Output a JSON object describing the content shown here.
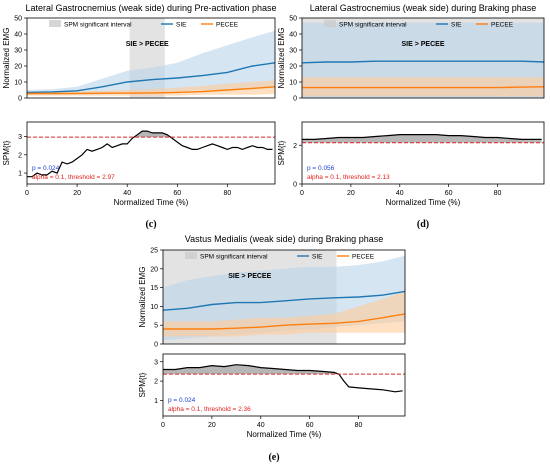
{
  "colors": {
    "sie": "#1f77b4",
    "pecee": "#ff7f0e",
    "sie_band": "#b9d3ea",
    "pecee_band": "#ffcc99",
    "spm_region": "#cccccc",
    "threshold": "#d62728",
    "p_text": "#1f3fd6",
    "alpha_text": "#e0201a",
    "spm_fill": "#9e9e9e"
  },
  "chart_data": [
    {
      "id": "c",
      "type": "line",
      "title": "Lateral Gastrocnemius (weak side) during Pre-activation phase",
      "panel_label": "(c)",
      "ylabel": "Normalized EMG",
      "ylim": [
        0,
        50
      ],
      "yticks": [
        0,
        10,
        20,
        30,
        40,
        50
      ],
      "legend": {
        "entries": [
          "SPM significant interval",
          "SIE",
          "PECEE"
        ],
        "placement": "top"
      },
      "significance_label": "SIE > PECEE",
      "spm_intervals": [
        [
          41,
          55
        ]
      ],
      "series": [
        {
          "name": "SIE",
          "x": [
            0,
            10,
            20,
            30,
            40,
            50,
            60,
            70,
            80,
            90,
            99
          ],
          "mean": [
            3.5,
            3.8,
            4.5,
            7,
            10,
            11.5,
            12.5,
            14,
            16,
            20,
            22
          ],
          "upper": [
            5,
            5.5,
            7,
            12,
            17,
            19,
            22,
            28,
            33,
            38,
            42
          ],
          "lower": [
            2,
            2,
            2,
            2,
            3,
            4,
            4,
            5,
            5,
            6,
            6
          ]
        },
        {
          "name": "PECEE",
          "x": [
            0,
            10,
            20,
            30,
            40,
            50,
            60,
            70,
            80,
            90,
            99
          ],
          "mean": [
            2.8,
            2.8,
            2.9,
            3,
            3,
            3.2,
            3.5,
            4,
            5,
            6,
            7
          ],
          "upper": [
            4,
            4,
            4,
            4.5,
            5,
            5.5,
            6.5,
            7.5,
            9,
            10,
            11
          ],
          "lower": [
            1.5,
            1.5,
            1.5,
            1.5,
            1.5,
            1.5,
            1.5,
            2,
            2,
            2,
            2.5
          ]
        }
      ],
      "spm": {
        "ylabel": "SPM{t}",
        "xlabel": "Normalized Time (%)",
        "ylim": [
          0.4,
          3.8
        ],
        "yticks": [
          1,
          2,
          3
        ],
        "xlim": [
          0,
          99
        ],
        "xticks": [
          0,
          20,
          40,
          60,
          80
        ],
        "threshold": 2.97,
        "x": [
          0,
          2,
          4,
          6,
          8,
          10,
          12,
          14,
          16,
          18,
          20,
          22,
          24,
          26,
          28,
          30,
          32,
          34,
          36,
          38,
          40,
          42,
          44,
          46,
          48,
          50,
          52,
          54,
          56,
          58,
          60,
          62,
          64,
          66,
          68,
          70,
          72,
          74,
          76,
          78,
          80,
          82,
          84,
          86,
          88,
          90,
          92,
          94,
          96,
          98
        ],
        "y": [
          0.8,
          0.8,
          1.0,
          0.9,
          0.9,
          1.1,
          1.0,
          1.6,
          1.5,
          1.6,
          1.8,
          2.0,
          2.3,
          2.2,
          2.3,
          2.4,
          2.6,
          2.4,
          2.5,
          2.6,
          2.6,
          2.9,
          3.1,
          3.3,
          3.3,
          3.2,
          3.2,
          3.2,
          3.1,
          2.9,
          2.7,
          2.5,
          2.4,
          2.3,
          2.3,
          2.4,
          2.5,
          2.6,
          2.5,
          2.4,
          2.3,
          2.4,
          2.4,
          2.3,
          2.4,
          2.5,
          2.4,
          2.4,
          2.3,
          2.3
        ],
        "p_text": "p = 0.024",
        "alpha_text": "alpha = 0.1, threshold = 2.97"
      }
    },
    {
      "id": "d",
      "type": "line",
      "title": "Lateral Gastrocnemius (weak side) during Braking phase",
      "panel_label": "(d)",
      "ylabel": "Normalized EMG",
      "ylim": [
        0,
        50
      ],
      "yticks": [
        0,
        10,
        20,
        30,
        40,
        50
      ],
      "legend": {
        "entries": [
          "SPM significant interval",
          "SIE",
          "PECEE"
        ],
        "placement": "top"
      },
      "significance_label": "SIE > PECEE",
      "spm_intervals": [
        [
          0,
          99
        ]
      ],
      "series": [
        {
          "name": "SIE",
          "x": [
            0,
            10,
            20,
            30,
            40,
            50,
            60,
            70,
            80,
            90,
            99
          ],
          "mean": [
            22,
            22.5,
            22.5,
            23,
            23,
            23,
            23,
            23,
            23,
            23,
            22.5
          ],
          "upper": [
            47,
            47,
            47,
            47,
            47,
            47,
            47,
            47,
            47,
            47,
            47
          ],
          "lower": [
            0,
            0,
            0,
            0,
            0,
            0,
            0,
            0,
            0,
            0,
            0
          ]
        },
        {
          "name": "PECEE",
          "x": [
            0,
            10,
            20,
            30,
            40,
            50,
            60,
            70,
            80,
            90,
            99
          ],
          "mean": [
            6.5,
            6.5,
            6.5,
            6.5,
            6.5,
            6.5,
            6.5,
            6.5,
            6.5,
            6.8,
            7
          ],
          "upper": [
            13,
            13,
            13,
            13,
            13,
            13,
            13,
            13,
            13,
            13,
            13
          ],
          "lower": [
            1,
            1,
            1,
            1,
            1,
            1,
            1,
            1,
            1,
            1,
            1
          ]
        }
      ],
      "spm": {
        "ylabel": "SPM{t}",
        "xlabel": "Normalized Time (%)",
        "ylim": [
          0,
          3.2
        ],
        "yticks": [
          0,
          2
        ],
        "xlim": [
          0,
          99
        ],
        "xticks": [
          0,
          20,
          40,
          60,
          80
        ],
        "threshold": 2.13,
        "x": [
          0,
          5,
          10,
          15,
          20,
          25,
          30,
          35,
          40,
          45,
          50,
          55,
          60,
          65,
          70,
          75,
          80,
          85,
          90,
          95,
          98
        ],
        "y": [
          2.3,
          2.3,
          2.35,
          2.4,
          2.4,
          2.4,
          2.45,
          2.5,
          2.55,
          2.55,
          2.55,
          2.55,
          2.5,
          2.5,
          2.45,
          2.4,
          2.4,
          2.35,
          2.3,
          2.3,
          2.3
        ],
        "p_text": "p = 0.056",
        "alpha_text": "alpha = 0.1, threshold = 2.13"
      }
    },
    {
      "id": "e",
      "type": "line",
      "title": "Vastus Medialis (weak side) during Braking phase",
      "panel_label": "(e)",
      "ylabel": "Normalized EMG",
      "ylim": [
        0,
        25
      ],
      "yticks": [
        0,
        5,
        10,
        15,
        20,
        25
      ],
      "legend": {
        "entries": [
          "SPM significant interval",
          "SIE",
          "PECEE"
        ],
        "placement": "top"
      },
      "significance_label": "SIE > PECEE",
      "spm_intervals": [
        [
          0,
          71
        ]
      ],
      "series": [
        {
          "name": "SIE",
          "x": [
            0,
            10,
            20,
            30,
            40,
            50,
            60,
            70,
            80,
            90,
            99
          ],
          "mean": [
            9,
            9.5,
            10.5,
            11,
            11,
            11.5,
            12,
            12.3,
            12.5,
            13,
            14
          ],
          "upper": [
            15,
            17,
            18,
            19,
            19.5,
            20,
            20.5,
            20.5,
            21,
            22,
            23.5
          ],
          "lower": [
            1,
            1.5,
            2,
            2.5,
            3,
            3.5,
            4,
            4.5,
            5,
            5.5,
            6
          ]
        },
        {
          "name": "PECEE",
          "x": [
            0,
            10,
            20,
            30,
            40,
            50,
            60,
            70,
            80,
            90,
            99
          ],
          "mean": [
            4,
            4,
            4,
            4.2,
            4.5,
            5,
            5.3,
            5.5,
            6,
            7,
            8
          ],
          "upper": [
            6,
            6,
            6,
            6.5,
            7,
            7,
            7.5,
            8,
            10,
            12,
            14
          ],
          "lower": [
            2,
            2,
            2,
            2,
            2.5,
            2.5,
            3,
            3,
            3,
            3,
            3
          ]
        }
      ],
      "spm": {
        "ylabel": "SPM{t}",
        "xlabel": "Normalized Time (%)",
        "ylim": [
          0.2,
          3.4
        ],
        "yticks": [
          1,
          2,
          3
        ],
        "xlim": [
          0,
          99
        ],
        "xticks": [
          0,
          20,
          40,
          60,
          80
        ],
        "threshold": 2.36,
        "x": [
          0,
          5,
          10,
          15,
          20,
          25,
          30,
          35,
          40,
          45,
          50,
          55,
          60,
          65,
          70,
          72,
          74,
          76,
          80,
          85,
          90,
          95,
          98
        ],
        "y": [
          2.6,
          2.6,
          2.7,
          2.7,
          2.8,
          2.75,
          2.85,
          2.8,
          2.7,
          2.65,
          2.6,
          2.55,
          2.55,
          2.5,
          2.45,
          2.35,
          2.0,
          1.7,
          1.65,
          1.6,
          1.55,
          1.45,
          1.5
        ],
        "p_text": "p = 0.024",
        "alpha_text": "alpha = 0.1, threshold = 2.36"
      }
    }
  ]
}
